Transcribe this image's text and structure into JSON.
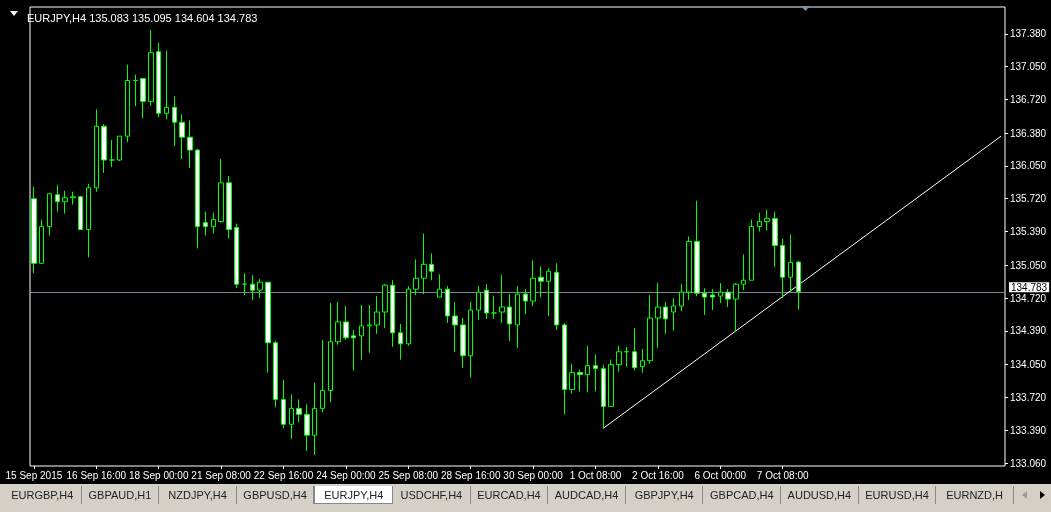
{
  "chart_data": {
    "type": "candlestick",
    "title": "EURJPY,H4 135.083 135.095 134.604 134.783",
    "color": "#00ff00",
    "grid": false,
    "categories": [
      "15 Sep 2015",
      null,
      null,
      null,
      null,
      null,
      null,
      null,
      "16 Sep 16:00",
      null,
      null,
      null,
      null,
      null,
      null,
      null,
      "18 Sep 00:00",
      null,
      null,
      null,
      null,
      null,
      null,
      null,
      "21 Sep 08:00",
      null,
      null,
      null,
      null,
      null,
      null,
      null,
      "22 Sep 16:00",
      null,
      null,
      null,
      null,
      null,
      null,
      null,
      "24 Sep 00:00",
      null,
      null,
      null,
      null,
      null,
      null,
      null,
      "25 Sep 08:00",
      null,
      null,
      null,
      null,
      null,
      null,
      null,
      "28 Sep 16:00",
      null,
      null,
      null,
      null,
      null,
      null,
      null,
      "30 Sep 00:00",
      null,
      null,
      null,
      null,
      null,
      null,
      null,
      "1 Oct 08:00",
      null,
      null,
      null,
      null,
      null,
      null,
      null,
      "2 Oct 16:00",
      null,
      null,
      null,
      null,
      null,
      null,
      null,
      "6 Oct 00:00",
      null,
      null,
      null,
      null,
      null,
      null,
      null,
      "7 Oct 08:00",
      null,
      null,
      null,
      null,
      null,
      null,
      null,
      null,
      null,
      null,
      null,
      null,
      null,
      null,
      null,
      null,
      null,
      null,
      null,
      null,
      null,
      null,
      null,
      null,
      null,
      null,
      null,
      null
    ],
    "ohlc": [
      [
        135.72,
        135.84,
        134.97,
        135.07
      ],
      [
        135.07,
        135.51,
        135.07,
        135.44
      ],
      [
        135.44,
        135.78,
        135.35,
        135.77
      ],
      [
        135.76,
        135.86,
        135.59,
        135.69
      ],
      [
        135.69,
        135.8,
        135.57,
        135.73
      ],
      [
        135.73,
        135.79,
        135.66,
        135.74
      ],
      [
        135.74,
        135.75,
        135.41,
        135.41
      ],
      [
        135.41,
        135.87,
        135.13,
        135.83
      ],
      [
        135.83,
        136.62,
        135.79,
        136.45
      ],
      [
        136.45,
        136.47,
        135.98,
        136.11
      ],
      [
        136.11,
        136.31,
        136.04,
        136.11
      ],
      [
        136.11,
        136.35,
        136.1,
        136.35
      ],
      [
        136.35,
        137.07,
        136.29,
        136.91
      ],
      [
        136.91,
        136.97,
        136.65,
        136.91
      ],
      [
        136.93,
        136.93,
        136.53,
        136.7
      ],
      [
        136.7,
        137.42,
        136.66,
        137.19
      ],
      [
        137.2,
        137.29,
        136.54,
        136.58
      ],
      [
        136.58,
        137.21,
        136.52,
        136.64
      ],
      [
        136.64,
        136.75,
        136.25,
        136.49
      ],
      [
        136.49,
        136.57,
        136.12,
        136.34
      ],
      [
        136.34,
        136.51,
        136.03,
        136.21
      ],
      [
        136.21,
        136.22,
        135.22,
        135.44
      ],
      [
        135.48,
        135.59,
        135.35,
        135.44
      ],
      [
        135.44,
        135.58,
        135.37,
        135.51
      ],
      [
        135.49,
        136.12,
        135.48,
        135.88
      ],
      [
        135.88,
        135.95,
        135.32,
        135.41
      ],
      [
        135.43,
        135.47,
        134.82,
        134.86
      ],
      [
        134.86,
        134.97,
        134.75,
        134.86
      ],
      [
        134.86,
        134.95,
        134.7,
        134.8
      ],
      [
        134.8,
        134.91,
        134.72,
        134.88
      ],
      [
        134.88,
        134.88,
        133.97,
        134.27
      ],
      [
        134.27,
        134.29,
        133.62,
        133.7
      ],
      [
        133.7,
        133.9,
        133.41,
        133.45
      ],
      [
        133.45,
        133.75,
        133.3,
        133.61
      ],
      [
        133.61,
        133.7,
        133.47,
        133.55
      ],
      [
        133.55,
        133.65,
        133.18,
        133.34
      ],
      [
        133.34,
        133.87,
        133.14,
        133.61
      ],
      [
        133.61,
        134.3,
        133.57,
        133.79
      ],
      [
        133.79,
        134.67,
        133.67,
        134.28
      ],
      [
        134.28,
        134.68,
        134.25,
        134.48
      ],
      [
        134.48,
        134.64,
        134.3,
        134.32
      ],
      [
        134.34,
        134.4,
        133.99,
        134.32
      ],
      [
        134.34,
        134.65,
        134.1,
        134.44
      ],
      [
        134.44,
        134.65,
        134.17,
        134.45
      ],
      [
        134.45,
        134.74,
        134.36,
        134.58
      ],
      [
        134.58,
        134.86,
        134.42,
        134.85
      ],
      [
        134.85,
        134.9,
        134.23,
        134.37
      ],
      [
        134.37,
        134.46,
        134.1,
        134.26
      ],
      [
        134.26,
        134.84,
        134.24,
        134.81
      ],
      [
        134.81,
        135.11,
        134.75,
        134.92
      ],
      [
        134.92,
        135.37,
        134.76,
        135.06
      ],
      [
        135.06,
        135.17,
        134.9,
        134.99
      ],
      [
        134.73,
        134.96,
        134.73,
        134.81
      ],
      [
        134.81,
        134.84,
        134.47,
        134.54
      ],
      [
        134.54,
        134.68,
        134.18,
        134.45
      ],
      [
        134.45,
        134.52,
        134.02,
        134.14
      ],
      [
        134.14,
        134.68,
        133.92,
        134.6
      ],
      [
        134.6,
        134.84,
        134.5,
        134.78
      ],
      [
        134.8,
        134.86,
        134.51,
        134.57
      ],
      [
        134.57,
        134.74,
        134.51,
        134.57
      ],
      [
        134.58,
        134.95,
        134.47,
        134.63
      ],
      [
        134.63,
        134.76,
        134.29,
        134.46
      ],
      [
        134.45,
        134.84,
        134.22,
        134.76
      ],
      [
        134.76,
        134.81,
        134.56,
        134.69
      ],
      [
        134.69,
        135.1,
        134.64,
        134.92
      ],
      [
        134.93,
        135.04,
        134.73,
        134.89
      ],
      [
        134.89,
        135.02,
        134.54,
        134.99
      ],
      [
        134.98,
        135.07,
        134.4,
        134.45
      ],
      [
        134.45,
        134.47,
        133.55,
        133.8
      ],
      [
        133.8,
        134.06,
        133.76,
        133.97
      ],
      [
        133.97,
        134.0,
        133.78,
        133.95
      ],
      [
        133.95,
        134.24,
        133.77,
        134.04
      ],
      [
        134.04,
        134.15,
        133.78,
        134.01
      ],
      [
        134.01,
        134.05,
        133.41,
        133.63
      ],
      [
        133.63,
        134.1,
        133.63,
        134.05
      ],
      [
        134.05,
        134.24,
        133.98,
        134.18
      ],
      [
        134.18,
        134.23,
        134.03,
        134.18
      ],
      [
        134.18,
        134.42,
        133.99,
        134.02
      ],
      [
        134.03,
        134.21,
        133.97,
        134.09
      ],
      [
        134.09,
        134.75,
        134.06,
        134.52
      ],
      [
        134.52,
        134.87,
        134.22,
        134.63
      ],
      [
        134.63,
        134.68,
        134.36,
        134.51
      ],
      [
        134.58,
        134.72,
        134.39,
        134.64
      ],
      [
        134.64,
        134.86,
        134.59,
        134.78
      ],
      [
        134.78,
        135.34,
        134.7,
        135.29
      ],
      [
        135.29,
        135.7,
        134.74,
        134.77
      ],
      [
        134.77,
        134.82,
        134.55,
        134.73
      ],
      [
        134.75,
        134.81,
        134.6,
        134.73
      ],
      [
        134.74,
        134.87,
        134.67,
        134.78
      ],
      [
        134.78,
        134.81,
        134.63,
        134.71
      ],
      [
        134.71,
        134.87,
        134.38,
        134.86
      ],
      [
        134.86,
        135.16,
        134.8,
        134.9
      ],
      [
        134.9,
        135.51,
        134.9,
        135.44
      ],
      [
        135.44,
        135.58,
        135.39,
        135.49
      ],
      [
        135.49,
        135.61,
        135.4,
        135.52
      ],
      [
        135.52,
        135.59,
        135.03,
        135.25
      ],
      [
        135.25,
        135.32,
        134.72,
        134.93
      ],
      [
        134.93,
        135.36,
        134.78,
        135.08
      ],
      [
        135.083,
        135.095,
        134.604,
        134.783
      ],
      null,
      null,
      null,
      null,
      null,
      null,
      null,
      null,
      null,
      null,
      null,
      null,
      null,
      null,
      null,
      null,
      null,
      null,
      null,
      null,
      null,
      null,
      null,
      null,
      null,
      null
    ],
    "series": [
      {
        "type": "line",
        "color": "#ffffff",
        "values": [
          null,
          null,
          null,
          null,
          null,
          null,
          null,
          null,
          null,
          null,
          null,
          null,
          null,
          null,
          null,
          null,
          null,
          null,
          null,
          null,
          null,
          null,
          null,
          null,
          null,
          null,
          null,
          null,
          null,
          null,
          null,
          null,
          null,
          null,
          null,
          null,
          null,
          null,
          null,
          null,
          null,
          null,
          null,
          null,
          null,
          null,
          null,
          null,
          null,
          null,
          null,
          null,
          null,
          null,
          null,
          null,
          null,
          null,
          null,
          null,
          null,
          null,
          null,
          null,
          null,
          null,
          null,
          null,
          null,
          null,
          null,
          null,
          null,
          133.41,
          null,
          null,
          null,
          null,
          null,
          null,
          null,
          null,
          null,
          null,
          null,
          null,
          null,
          null,
          null,
          null,
          null,
          null,
          null,
          null,
          null,
          null,
          null,
          null,
          null,
          null,
          null,
          null,
          null,
          null,
          null,
          null,
          null,
          null,
          null,
          null,
          null,
          null,
          null,
          null,
          null,
          null,
          null,
          null,
          null,
          null,
          null,
          null,
          null,
          null,
          136.35
        ]
      }
    ],
    "ylim": [
      133.03,
      137.65
    ],
    "yticks": [
      {
        "value": 133.06,
        "label": "133.060"
      },
      {
        "value": 133.39,
        "label": "133.390"
      },
      {
        "value": 133.72,
        "label": "133.720"
      },
      {
        "value": 134.05,
        "label": "134.050"
      },
      {
        "value": 134.39,
        "label": "134.390"
      },
      {
        "value": 134.72,
        "label": "134.720"
      },
      {
        "value": 135.05,
        "label": "135.050"
      },
      {
        "value": 135.39,
        "label": "135.390"
      },
      {
        "value": 135.72,
        "label": "135.720"
      },
      {
        "value": 136.05,
        "label": "136.050"
      },
      {
        "value": 136.38,
        "label": "136.380"
      },
      {
        "value": 136.72,
        "label": "136.720"
      },
      {
        "value": 137.05,
        "label": "137.050"
      },
      {
        "value": 137.38,
        "label": "137.380"
      }
    ],
    "ref_lines": [
      {
        "axis": "y",
        "value": 134.783,
        "label": "134.783",
        "color": "#778899"
      }
    ],
    "annotations": [
      "EURGBP,H4",
      "GBPAUD,H1",
      "NZDJPY,H4",
      "GBPUSD,H4",
      "EURJPY,H4",
      "USDCHF,H4",
      "EURCAD,H4",
      "AUDCAD,H4",
      "GBPJPY,H4",
      "GBPCAD,H4",
      "AUDUSD,H4",
      "EURUSD,H4",
      "EURNZD,H"
    ]
  }
}
